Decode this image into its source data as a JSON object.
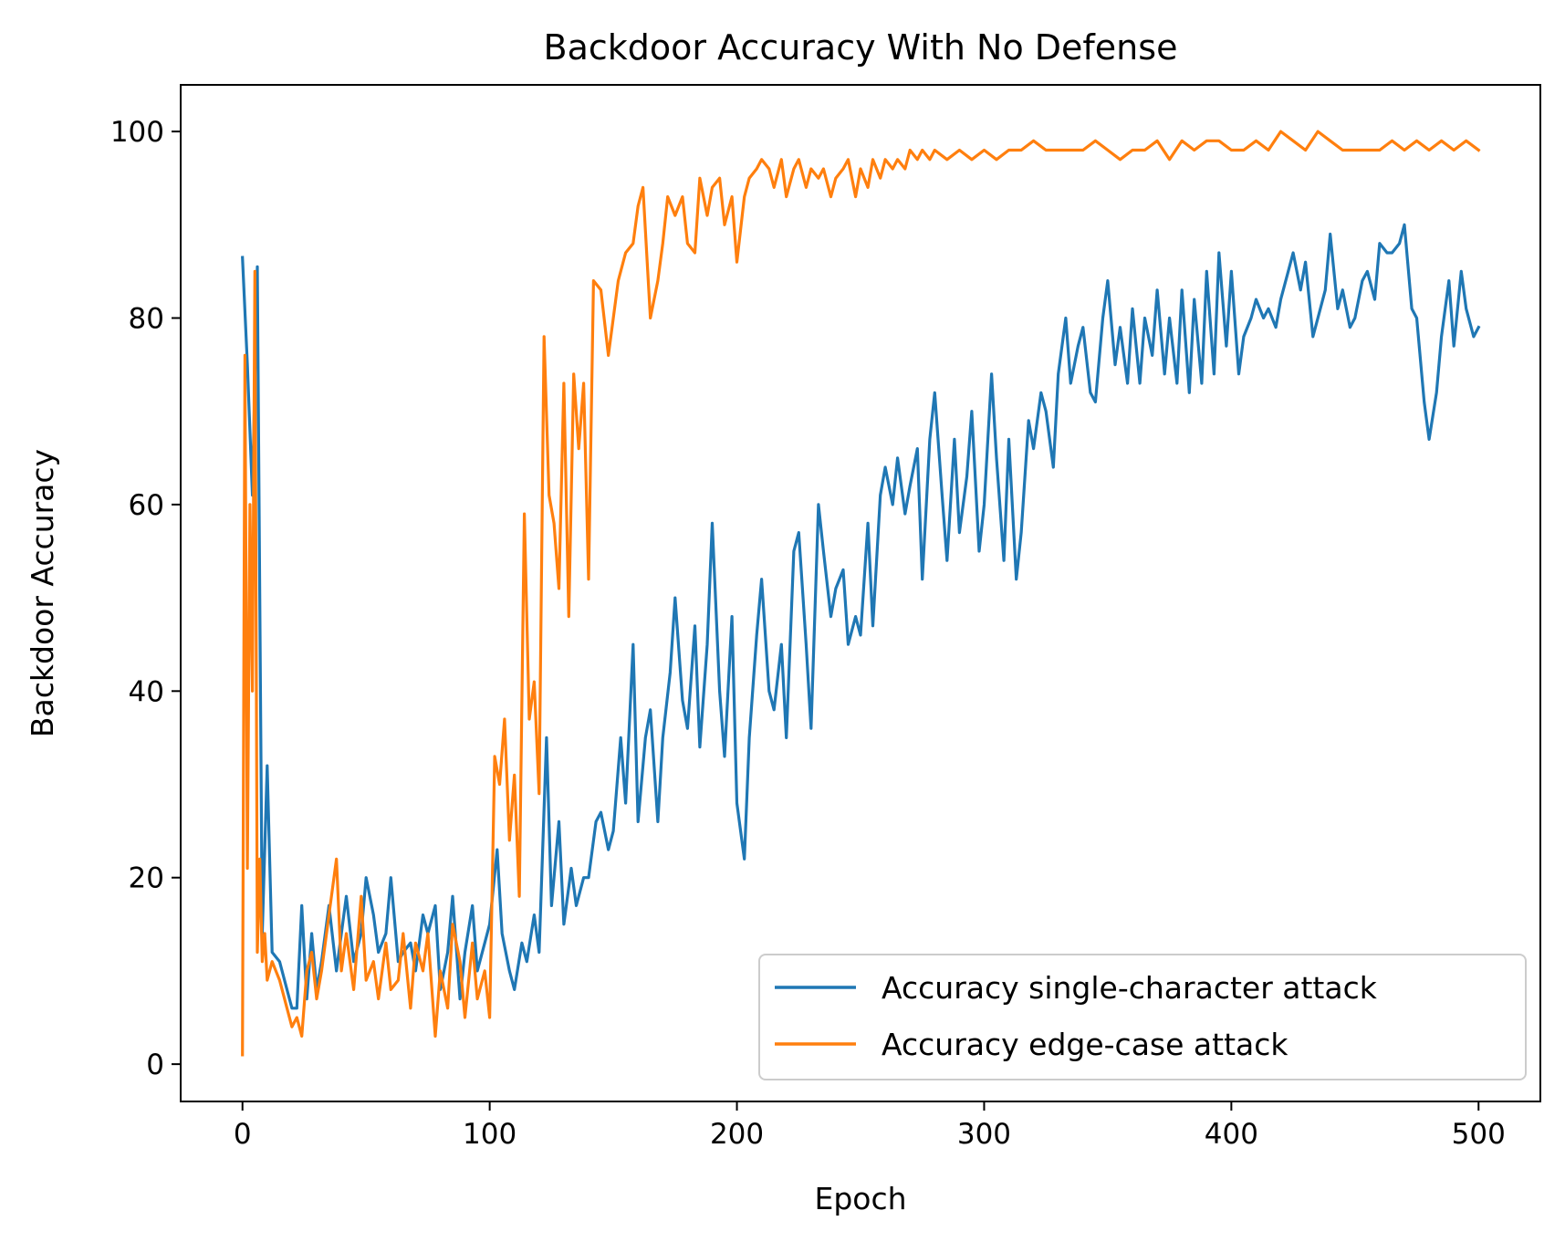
{
  "chart_data": {
    "type": "line",
    "title": "Backdoor Accuracy With No Defense",
    "xlabel": "Epoch",
    "ylabel": "Backdoor Accuracy",
    "xlim": [
      -25,
      525
    ],
    "ylim": [
      -4,
      105
    ],
    "xticks": [
      0,
      100,
      200,
      300,
      400,
      500
    ],
    "yticks": [
      0,
      20,
      40,
      60,
      80,
      100
    ],
    "grid": false,
    "legend_position": "lower-right",
    "series": [
      {
        "name": "Accuracy single-character attack",
        "color": "#1f77b4",
        "x": [
          0,
          2,
          4,
          6,
          8,
          10,
          12,
          15,
          18,
          20,
          22,
          24,
          26,
          28,
          30,
          32,
          35,
          38,
          40,
          42,
          45,
          48,
          50,
          53,
          55,
          58,
          60,
          63,
          65,
          68,
          70,
          73,
          75,
          78,
          80,
          83,
          85,
          88,
          90,
          93,
          95,
          98,
          100,
          103,
          105,
          108,
          110,
          113,
          115,
          118,
          120,
          123,
          125,
          128,
          130,
          133,
          135,
          138,
          140,
          143,
          145,
          148,
          150,
          153,
          155,
          158,
          160,
          163,
          165,
          168,
          170,
          173,
          175,
          178,
          180,
          183,
          185,
          188,
          190,
          193,
          195,
          198,
          200,
          203,
          205,
          208,
          210,
          213,
          215,
          218,
          220,
          223,
          225,
          228,
          230,
          233,
          235,
          238,
          240,
          243,
          245,
          248,
          250,
          253,
          255,
          258,
          260,
          263,
          265,
          268,
          270,
          273,
          275,
          278,
          280,
          283,
          285,
          288,
          290,
          293,
          295,
          298,
          300,
          303,
          305,
          308,
          310,
          313,
          315,
          318,
          320,
          323,
          325,
          328,
          330,
          333,
          335,
          338,
          340,
          343,
          345,
          348,
          350,
          353,
          355,
          358,
          360,
          363,
          365,
          368,
          370,
          373,
          375,
          378,
          380,
          383,
          385,
          388,
          390,
          393,
          395,
          398,
          400,
          403,
          405,
          408,
          410,
          413,
          415,
          418,
          420,
          423,
          425,
          428,
          430,
          433,
          435,
          438,
          440,
          443,
          445,
          448,
          450,
          453,
          455,
          458,
          460,
          463,
          465,
          468,
          470,
          473,
          475,
          478,
          480,
          483,
          485,
          488,
          490,
          493,
          495,
          498,
          500
        ],
        "y": [
          86.5,
          75,
          61,
          85.5,
          14,
          32,
          12,
          11,
          8,
          6,
          6,
          17,
          7,
          14,
          8,
          11,
          17,
          10,
          14,
          18,
          11,
          14,
          20,
          16,
          12,
          14,
          20,
          11,
          12,
          13,
          10,
          16,
          14,
          17,
          8,
          12,
          18,
          7,
          12,
          17,
          10,
          13,
          15,
          23,
          14,
          10,
          8,
          13,
          11,
          16,
          12,
          35,
          17,
          26,
          15,
          21,
          17,
          20,
          20,
          26,
          27,
          23,
          25,
          35,
          28,
          45,
          26,
          35,
          38,
          26,
          35,
          42,
          50,
          39,
          36,
          47,
          34,
          45,
          58,
          40,
          33,
          48,
          28,
          22,
          35,
          46,
          52,
          40,
          38,
          45,
          35,
          55,
          57,
          45,
          36,
          60,
          55,
          48,
          51,
          53,
          45,
          48,
          46,
          58,
          47,
          61,
          64,
          60,
          65,
          59,
          62,
          66,
          52,
          67,
          72,
          61,
          54,
          67,
          57,
          63,
          70,
          55,
          60,
          74,
          65,
          54,
          67,
          52,
          57,
          69,
          66,
          72,
          70,
          64,
          74,
          80,
          73,
          77,
          79,
          72,
          71,
          80,
          84,
          75,
          79,
          73,
          81,
          73,
          80,
          76,
          83,
          74,
          80,
          73,
          83,
          72,
          82,
          73,
          85,
          74,
          87,
          77,
          85,
          74,
          78,
          80,
          82,
          80,
          81,
          79,
          82,
          85,
          87,
          83,
          86,
          78,
          80,
          83,
          89,
          81,
          83,
          79,
          80,
          84,
          85,
          82,
          88,
          87,
          87,
          88,
          90,
          81,
          80,
          71,
          67,
          72,
          78,
          84,
          77,
          85,
          81,
          78,
          79
        ]
      },
      {
        "name": "Accuracy edge-case attack",
        "color": "#ff7f0e",
        "x": [
          0,
          1,
          2,
          3,
          4,
          5,
          6,
          7,
          8,
          9,
          10,
          12,
          15,
          18,
          20,
          22,
          24,
          26,
          28,
          30,
          32,
          35,
          38,
          40,
          42,
          45,
          48,
          50,
          53,
          55,
          58,
          60,
          63,
          65,
          68,
          70,
          73,
          75,
          78,
          80,
          83,
          85,
          88,
          90,
          93,
          95,
          98,
          100,
          102,
          104,
          106,
          108,
          110,
          112,
          114,
          116,
          118,
          120,
          122,
          124,
          126,
          128,
          130,
          132,
          134,
          136,
          138,
          140,
          142,
          145,
          148,
          150,
          152,
          155,
          158,
          160,
          162,
          165,
          168,
          170,
          172,
          175,
          178,
          180,
          183,
          185,
          188,
          190,
          193,
          195,
          198,
          200,
          203,
          205,
          208,
          210,
          213,
          215,
          218,
          220,
          223,
          225,
          228,
          230,
          233,
          235,
          238,
          240,
          243,
          245,
          248,
          250,
          253,
          255,
          258,
          260,
          263,
          265,
          268,
          270,
          273,
          275,
          278,
          280,
          285,
          290,
          295,
          300,
          305,
          310,
          315,
          320,
          325,
          330,
          335,
          340,
          345,
          350,
          355,
          360,
          365,
          370,
          375,
          380,
          385,
          390,
          395,
          400,
          405,
          410,
          415,
          420,
          425,
          430,
          435,
          440,
          445,
          450,
          455,
          460,
          465,
          470,
          475,
          480,
          485,
          490,
          495,
          500
        ],
        "y": [
          1,
          76,
          21,
          60,
          40,
          85,
          12,
          22,
          11,
          14,
          9,
          11,
          9,
          6,
          4,
          5,
          3,
          10,
          12,
          7,
          10,
          16,
          22,
          10,
          14,
          8,
          18,
          9,
          11,
          7,
          13,
          8,
          9,
          14,
          6,
          13,
          10,
          14,
          3,
          10,
          6,
          15,
          11,
          5,
          13,
          7,
          10,
          5,
          33,
          30,
          37,
          24,
          31,
          18,
          59,
          37,
          41,
          29,
          78,
          61,
          58,
          51,
          73,
          48,
          74,
          66,
          73,
          52,
          84,
          83,
          76,
          80,
          84,
          87,
          88,
          92,
          94,
          80,
          84,
          88,
          93,
          91,
          93,
          88,
          87,
          95,
          91,
          94,
          95,
          90,
          93,
          86,
          93,
          95,
          96,
          97,
          96,
          94,
          97,
          93,
          96,
          97,
          94,
          96,
          95,
          96,
          93,
          95,
          96,
          97,
          93,
          96,
          94,
          97,
          95,
          97,
          96,
          97,
          96,
          98,
          97,
          98,
          97,
          98,
          97,
          98,
          97,
          98,
          97,
          98,
          98,
          99,
          98,
          98,
          98,
          98,
          99,
          98,
          97,
          98,
          98,
          99,
          97,
          99,
          98,
          99,
          99,
          98,
          98,
          99,
          98,
          100,
          99,
          98,
          100,
          99,
          98,
          98,
          98,
          98,
          99,
          98,
          99,
          98,
          99,
          98,
          99,
          98
        ]
      }
    ]
  }
}
